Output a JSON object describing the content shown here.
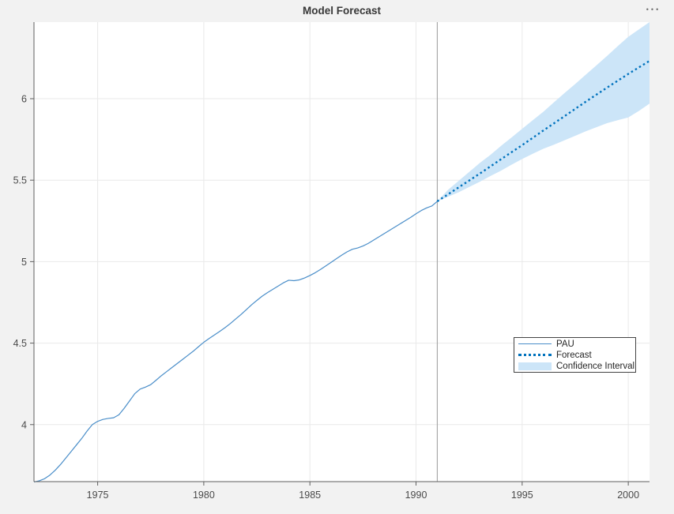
{
  "toolbar": {
    "more_options_glyph": "•••"
  },
  "colors": {
    "figure_bg": "#f2f2f2",
    "plot_bg": "#ffffff",
    "grid": "#e9e9e9",
    "spine": "#5f5f5f",
    "tick_label": "#4a4a4a",
    "title": "#383838",
    "pau": "#4a8ec9",
    "forecast": "#0072bd",
    "band": "#cce5f8",
    "vline": "#9a9a9a"
  },
  "legend": {
    "entries": [
      {
        "label": "PAU",
        "style": "line"
      },
      {
        "label": "Forecast",
        "style": "dotted"
      },
      {
        "label": "Confidence Interval",
        "style": "patch"
      }
    ]
  },
  "chart_data": {
    "type": "line",
    "title": "Model Forecast",
    "xlabel": "",
    "ylabel": "",
    "xlim": [
      1972,
      2001
    ],
    "ylim": [
      3.65,
      6.47
    ],
    "x_ticks": [
      1975,
      1980,
      1985,
      1990,
      1995,
      2000
    ],
    "y_ticks": [
      4,
      4.5,
      5,
      5.5,
      6
    ],
    "grid": true,
    "legend_position": "right-center",
    "forecast_start_x": 1991,
    "series": [
      {
        "name": "PAU",
        "style": "solid",
        "x": [
          1972.0,
          1972.25,
          1972.5,
          1972.75,
          1973.0,
          1973.25,
          1973.5,
          1973.75,
          1974.0,
          1974.25,
          1974.5,
          1974.75,
          1975.0,
          1975.25,
          1975.5,
          1975.75,
          1976.0,
          1976.25,
          1976.5,
          1976.75,
          1977.0,
          1977.25,
          1977.5,
          1977.75,
          1978.0,
          1978.25,
          1978.5,
          1978.75,
          1979.0,
          1979.25,
          1979.5,
          1979.75,
          1980.0,
          1980.25,
          1980.5,
          1980.75,
          1981.0,
          1981.25,
          1981.5,
          1981.75,
          1982.0,
          1982.25,
          1982.5,
          1982.75,
          1983.0,
          1983.25,
          1983.5,
          1983.75,
          1984.0,
          1984.25,
          1984.5,
          1984.75,
          1985.0,
          1985.25,
          1985.5,
          1985.75,
          1986.0,
          1986.25,
          1986.5,
          1986.75,
          1987.0,
          1987.25,
          1987.5,
          1987.75,
          1988.0,
          1988.25,
          1988.5,
          1988.75,
          1989.0,
          1989.25,
          1989.5,
          1989.75,
          1990.0,
          1990.25,
          1990.5,
          1990.75,
          1991.0
        ],
        "y": [
          3.648,
          3.655,
          3.668,
          3.69,
          3.72,
          3.755,
          3.795,
          3.835,
          3.875,
          3.915,
          3.96,
          4.0,
          4.02,
          4.032,
          4.038,
          4.042,
          4.06,
          4.1,
          4.145,
          4.19,
          4.218,
          4.23,
          4.245,
          4.272,
          4.3,
          4.325,
          4.35,
          4.375,
          4.4,
          4.425,
          4.45,
          4.478,
          4.505,
          4.528,
          4.55,
          4.572,
          4.595,
          4.62,
          4.648,
          4.675,
          4.705,
          4.735,
          4.762,
          4.788,
          4.81,
          4.83,
          4.85,
          4.87,
          4.886,
          4.883,
          4.888,
          4.9,
          4.915,
          4.932,
          4.952,
          4.974,
          4.996,
          5.018,
          5.04,
          5.06,
          5.076,
          5.084,
          5.096,
          5.112,
          5.132,
          5.152,
          5.172,
          5.192,
          5.212,
          5.232,
          5.252,
          5.272,
          5.294,
          5.314,
          5.33,
          5.342,
          5.37
        ]
      },
      {
        "name": "Forecast",
        "style": "dotted",
        "x": [
          1991,
          1992,
          1993,
          1994,
          1995,
          1996,
          1997,
          1998,
          1999,
          2000,
          2001
        ],
        "y": [
          5.37,
          5.455,
          5.54,
          5.628,
          5.715,
          5.805,
          5.893,
          5.982,
          6.068,
          6.152,
          6.232
        ]
      },
      {
        "name": "Confidence Interval",
        "style": "band",
        "x": [
          1991,
          1991.5,
          1992,
          1992.5,
          1993,
          1993.5,
          1994,
          1994.5,
          1995,
          1995.5,
          1996,
          1996.5,
          1997,
          1997.5,
          1998,
          1998.5,
          1999,
          1999.5,
          2000,
          2000.5,
          2001
        ],
        "upper": [
          5.37,
          5.44,
          5.495,
          5.55,
          5.605,
          5.655,
          5.71,
          5.762,
          5.815,
          5.868,
          5.92,
          5.978,
          6.035,
          6.09,
          6.148,
          6.205,
          6.262,
          6.322,
          6.38,
          6.425,
          6.47
        ],
        "lower": [
          5.37,
          5.398,
          5.425,
          5.458,
          5.49,
          5.525,
          5.558,
          5.595,
          5.63,
          5.662,
          5.693,
          5.718,
          5.745,
          5.772,
          5.8,
          5.825,
          5.85,
          5.868,
          5.885,
          5.925,
          5.97
        ]
      }
    ]
  }
}
